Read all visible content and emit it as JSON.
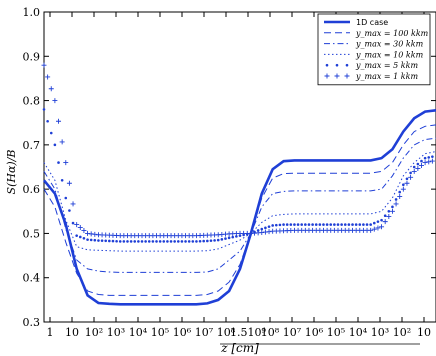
{
  "chart_data": {
    "type": "line",
    "xlabel": "z [cm]",
    "ylabel": "S(Hα)/B",
    "ylim": [
      0.3,
      1.0
    ],
    "yticks": [
      "0.3",
      "0.4",
      "0.5",
      "0.6",
      "0.7",
      "0.8",
      "0.9",
      "1.0"
    ],
    "xticks": [
      "1",
      "10",
      "10²",
      "10³",
      "10⁴",
      "10⁵",
      "10⁶",
      "10⁷",
      "10⁸",
      "1.510⁹",
      "10⁸",
      "10⁷",
      "10⁶",
      "10⁵",
      "10⁴",
      "10³",
      "10²",
      "10",
      "1"
    ],
    "grid": false,
    "legend_position": "top-right",
    "series": [
      {
        "name": "1D case",
        "color": "#1f3fd6",
        "style": "solid",
        "y": [
          0.62,
          0.59,
          0.52,
          0.42,
          0.36,
          0.343,
          0.341,
          0.34,
          0.34,
          0.34,
          0.34,
          0.34,
          0.34,
          0.34,
          0.34,
          0.342,
          0.35,
          0.37,
          0.42,
          0.5,
          0.59,
          0.645,
          0.663,
          0.665,
          0.665,
          0.665,
          0.665,
          0.665,
          0.665,
          0.665,
          0.665,
          0.67,
          0.69,
          0.73,
          0.76,
          0.775,
          0.778
        ]
      },
      {
        "name": "y_max = 100 kkm",
        "color": "#1f3fd6",
        "style": "dashed",
        "y": [
          0.6,
          0.56,
          0.48,
          0.41,
          0.37,
          0.362,
          0.36,
          0.36,
          0.36,
          0.36,
          0.36,
          0.36,
          0.36,
          0.36,
          0.36,
          0.362,
          0.37,
          0.39,
          0.43,
          0.5,
          0.58,
          0.625,
          0.635,
          0.636,
          0.636,
          0.636,
          0.636,
          0.636,
          0.636,
          0.636,
          0.636,
          0.64,
          0.66,
          0.7,
          0.73,
          0.742,
          0.745
        ]
      },
      {
        "name": "y_max = 30 kkm",
        "color": "#1f3fd6",
        "style": "dashdot",
        "y": [
          0.64,
          0.6,
          0.51,
          0.44,
          0.42,
          0.415,
          0.413,
          0.412,
          0.412,
          0.412,
          0.412,
          0.412,
          0.412,
          0.412,
          0.412,
          0.413,
          0.42,
          0.44,
          0.46,
          0.5,
          0.56,
          0.59,
          0.595,
          0.596,
          0.596,
          0.596,
          0.596,
          0.596,
          0.596,
          0.596,
          0.596,
          0.6,
          0.63,
          0.67,
          0.7,
          0.712,
          0.715
        ]
      },
      {
        "name": "y_max = 10 kkm",
        "color": "#1f3fd6",
        "style": "dotted",
        "y": [
          0.66,
          0.62,
          0.53,
          0.47,
          0.463,
          0.462,
          0.461,
          0.46,
          0.46,
          0.46,
          0.46,
          0.46,
          0.46,
          0.46,
          0.46,
          0.461,
          0.465,
          0.475,
          0.485,
          0.5,
          0.525,
          0.54,
          0.543,
          0.544,
          0.544,
          0.544,
          0.544,
          0.544,
          0.544,
          0.544,
          0.544,
          0.55,
          0.58,
          0.63,
          0.66,
          0.68,
          0.685
        ]
      },
      {
        "name": "y_max = 5 kkm",
        "color": "#1f3fd6",
        "style": "dots",
        "y": [
          0.78,
          0.7,
          0.58,
          0.495,
          0.486,
          0.484,
          0.483,
          0.482,
          0.482,
          0.482,
          0.482,
          0.482,
          0.482,
          0.482,
          0.482,
          0.483,
          0.485,
          0.49,
          0.495,
          0.5,
          0.51,
          0.518,
          0.52,
          0.52,
          0.52,
          0.52,
          0.52,
          0.52,
          0.52,
          0.52,
          0.52,
          0.53,
          0.56,
          0.61,
          0.65,
          0.67,
          0.675
        ]
      },
      {
        "name": "y_max = 1 kkm",
        "color": "#1f3fd6",
        "style": "plus",
        "y": [
          0.88,
          0.8,
          0.66,
          0.52,
          0.5,
          0.497,
          0.496,
          0.495,
          0.495,
          0.495,
          0.495,
          0.495,
          0.495,
          0.495,
          0.495,
          0.496,
          0.497,
          0.499,
          0.5,
          0.5,
          0.502,
          0.505,
          0.506,
          0.507,
          0.507,
          0.507,
          0.507,
          0.507,
          0.507,
          0.507,
          0.507,
          0.515,
          0.55,
          0.6,
          0.64,
          0.66,
          0.665
        ]
      }
    ]
  }
}
